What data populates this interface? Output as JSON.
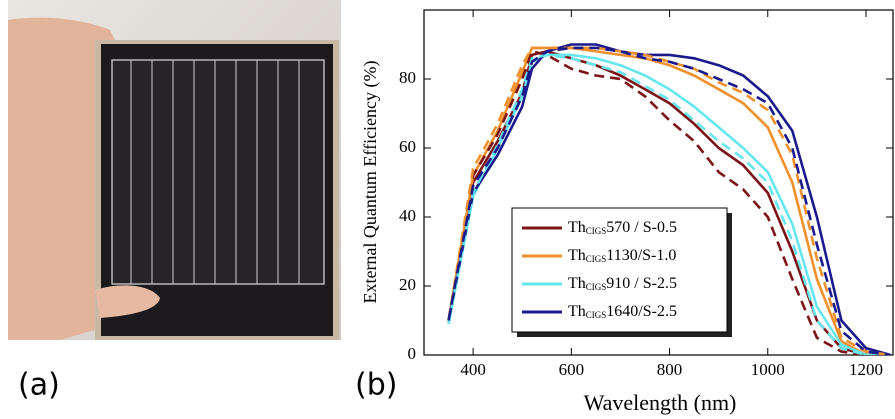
{
  "panel_labels": [
    "(a)",
    "(b)"
  ],
  "chart_data": {
    "type": "line",
    "x_label": "Wavelength (nm)",
    "y_label": "External Quantum Efficiency (%)",
    "x": [
      350,
      400,
      450,
      500,
      520,
      550,
      600,
      650,
      700,
      750,
      800,
      850,
      900,
      950,
      1000,
      1050,
      1100,
      1150,
      1200,
      1250
    ],
    "xlim": [
      300,
      1255
    ],
    "xticks": [
      400,
      600,
      800,
      1000,
      1200
    ],
    "ylim": [
      0,
      100
    ],
    "yticks": [
      0,
      20,
      40,
      60,
      80
    ],
    "legend": "lower-left",
    "series": [
      {
        "name": "Th",
        "name_sub": "CIGS",
        "name_rest": "570 / S-0.5",
        "color": "#7b1416",
        "dashed": false,
        "values": [
          10,
          50,
          62,
          76,
          87,
          88,
          86,
          84,
          81,
          77,
          73,
          67,
          60,
          55,
          47,
          30,
          10,
          2,
          0,
          0
        ]
      },
      {
        "name": "Th",
        "name_sub": "CIGS",
        "name_rest": "1130/S-1.0",
        "color": "#f0902a",
        "dashed": false,
        "values": [
          10,
          52,
          65,
          82,
          89,
          89,
          89,
          88,
          87,
          86,
          84,
          81,
          77,
          73,
          66,
          50,
          22,
          4,
          0,
          0
        ]
      },
      {
        "name": "Th",
        "name_sub": "CIGS",
        "name_rest": "910 / S-2.5",
        "color": "#66e6ee",
        "dashed": false,
        "values": [
          9,
          46,
          60,
          75,
          85,
          87,
          87,
          86,
          84,
          81,
          77,
          72,
          66,
          60,
          53,
          38,
          14,
          3,
          0,
          0
        ]
      },
      {
        "name": "Th",
        "name_sub": "CIGS",
        "name_rest": "1640/S-2.5",
        "color": "#1a1a8c",
        "dashed": false,
        "values": [
          10,
          47,
          58,
          72,
          83,
          88,
          90,
          90,
          88,
          87,
          87,
          86,
          84,
          81,
          75,
          65,
          40,
          10,
          2,
          0
        ]
      },
      {
        "color": "#7b1416",
        "dashed": true,
        "values": [
          10,
          52,
          64,
          80,
          88,
          87,
          83,
          81,
          80,
          75,
          68,
          62,
          53,
          48,
          40,
          22,
          5,
          1,
          0,
          0
        ]
      },
      {
        "color": "#f0902a",
        "dashed": true,
        "values": [
          10,
          54,
          67,
          84,
          89,
          89,
          89,
          89,
          88,
          87,
          85,
          83,
          79,
          76,
          71,
          58,
          28,
          5,
          1,
          0
        ]
      },
      {
        "color": "#66e6ee",
        "dashed": true,
        "values": [
          9,
          47,
          61,
          77,
          86,
          87,
          86,
          84,
          82,
          78,
          74,
          68,
          62,
          57,
          50,
          33,
          10,
          2,
          0,
          0
        ]
      },
      {
        "color": "#1a1a8c",
        "dashed": true,
        "values": [
          10,
          49,
          60,
          75,
          85,
          88,
          89,
          89,
          88,
          86,
          85,
          83,
          80,
          77,
          73,
          60,
          32,
          7,
          1,
          0
        ]
      }
    ]
  }
}
